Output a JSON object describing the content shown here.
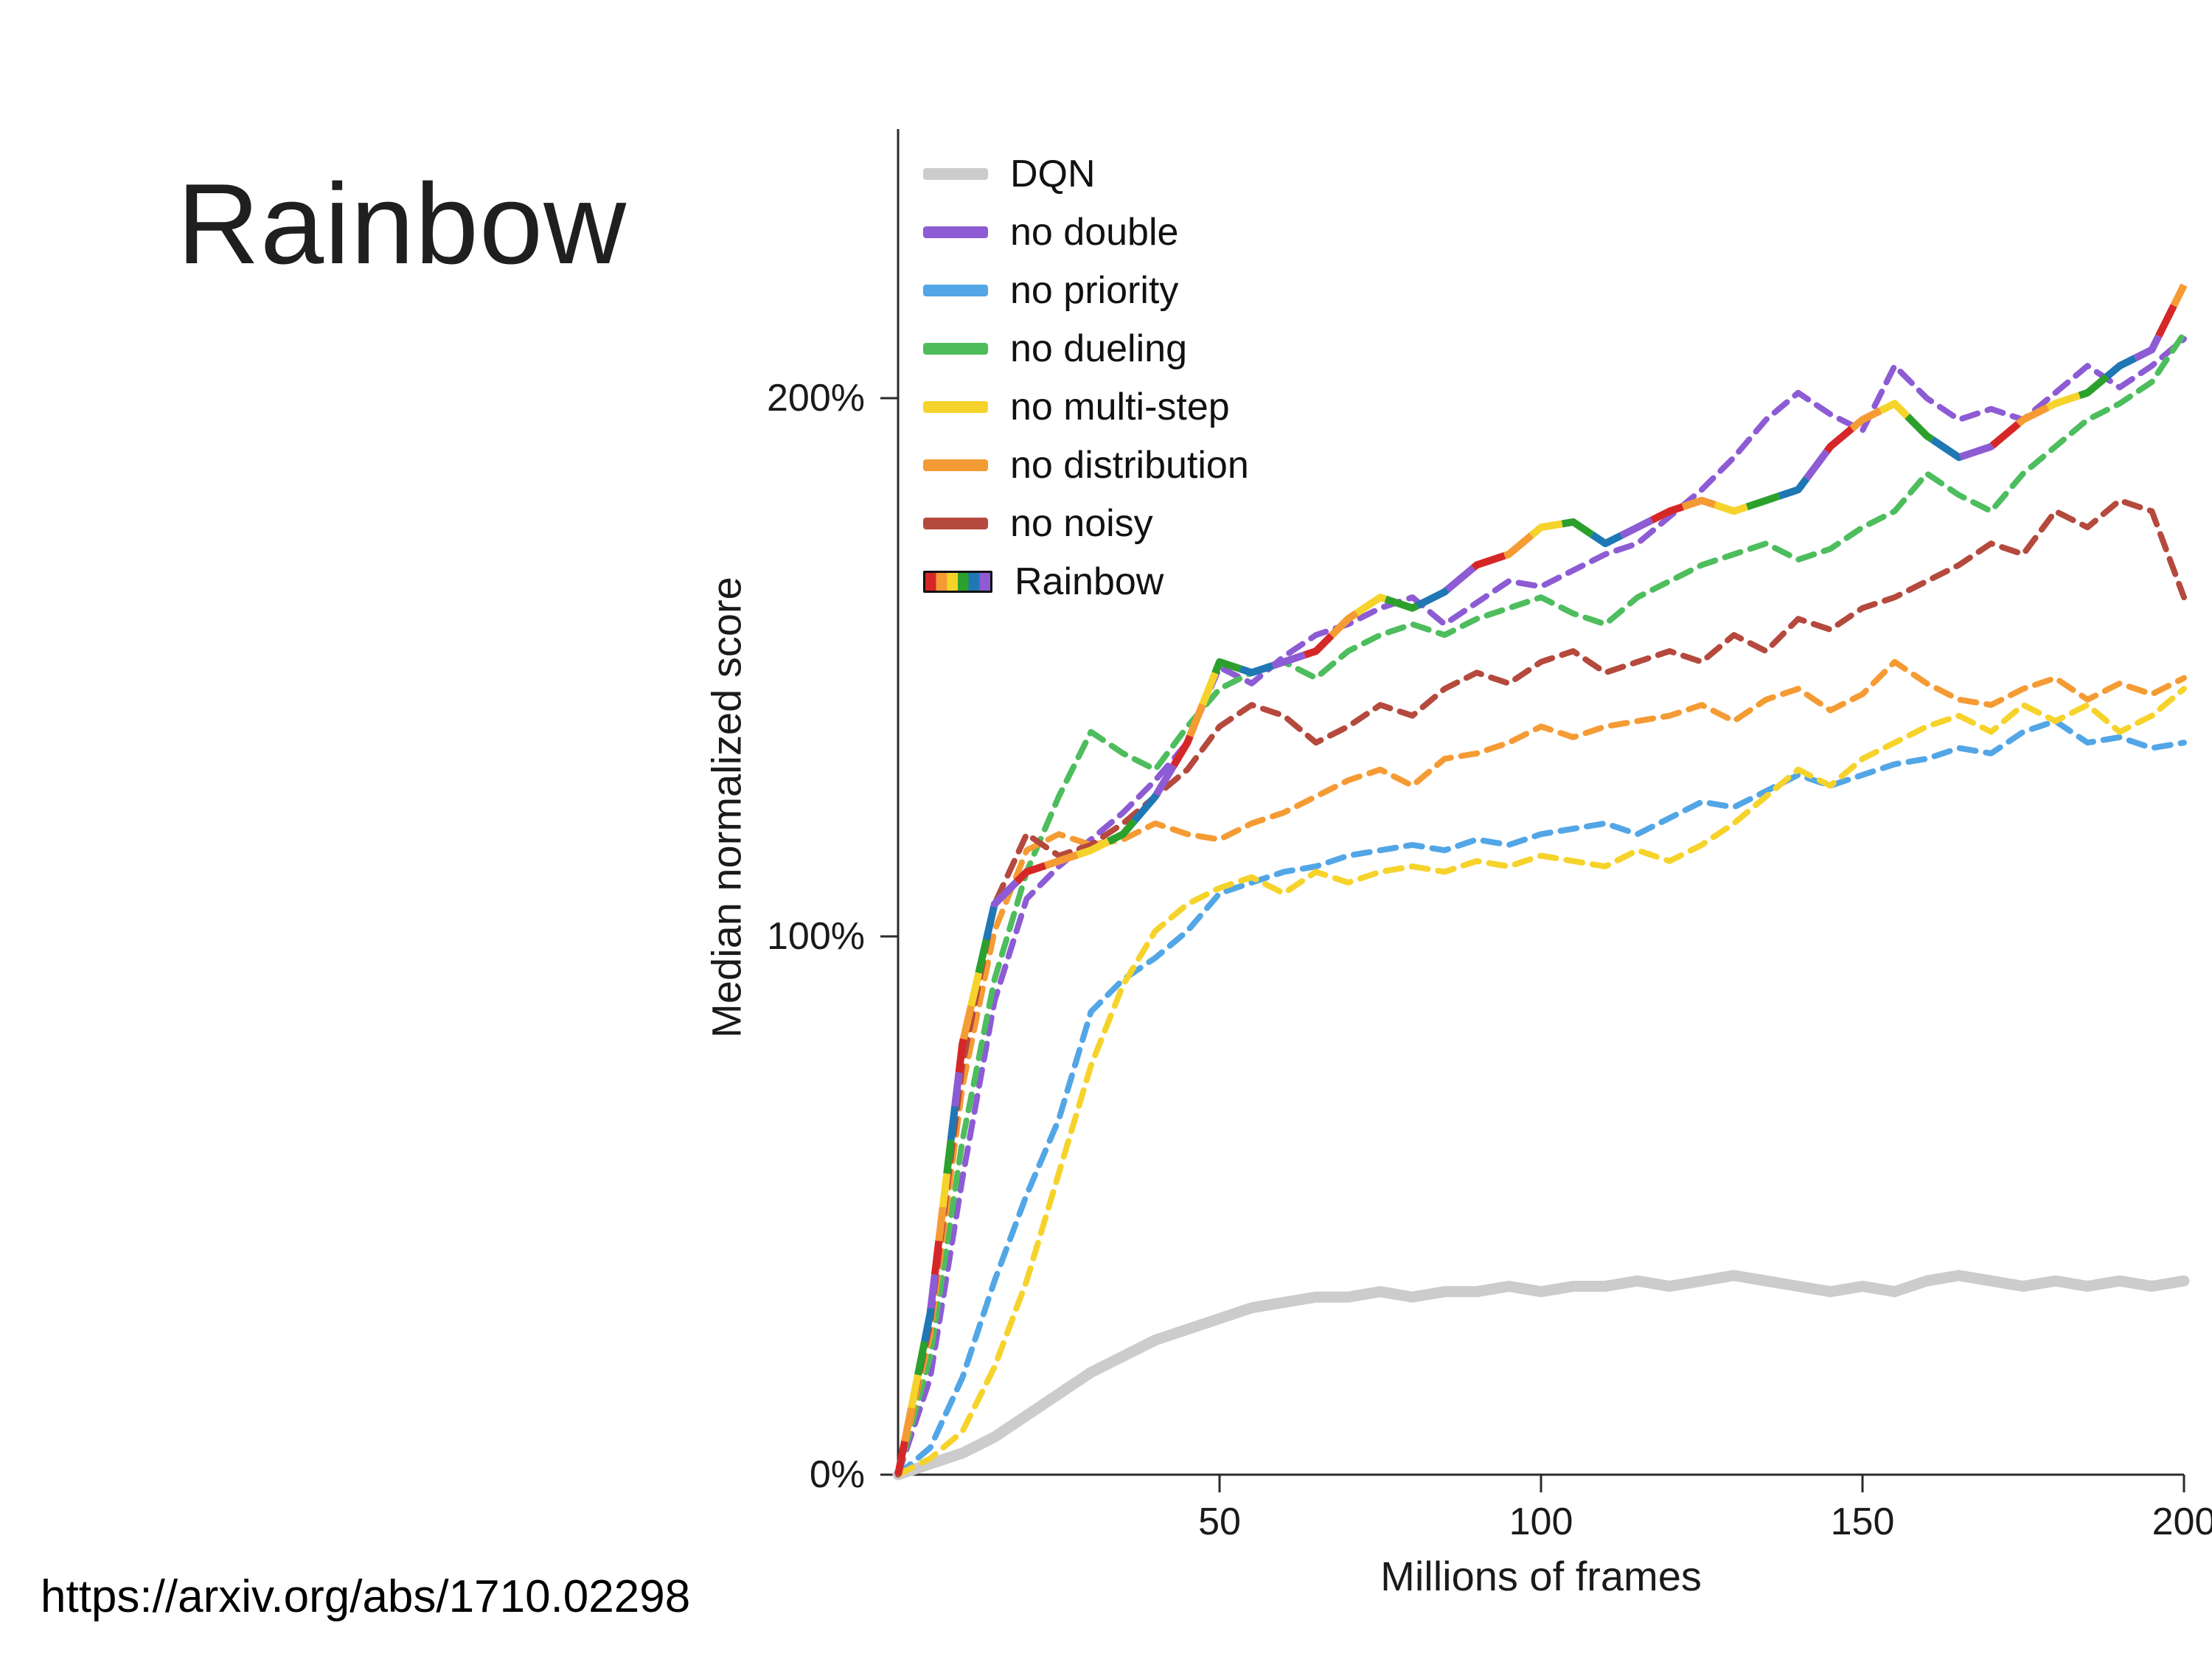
{
  "slide": {
    "title": "Rainbow",
    "source_link": "https://arxiv.org/abs/1710.02298"
  },
  "chart_data": {
    "type": "line",
    "title": "",
    "xlabel": "Millions of frames",
    "ylabel": "Median normalized score",
    "xlim": [
      0,
      200
    ],
    "ylim_percent": [
      0,
      250
    ],
    "grid": false,
    "legend_position": "top-left",
    "x_ticks": [
      50,
      100,
      150,
      200
    ],
    "y_ticks": [
      {
        "value": 0,
        "label": "0%"
      },
      {
        "value": 100,
        "label": "100%"
      },
      {
        "value": 200,
        "label": "200%"
      }
    ],
    "x": [
      0,
      5,
      10,
      15,
      20,
      25,
      30,
      35,
      40,
      45,
      50,
      55,
      60,
      65,
      70,
      75,
      80,
      85,
      90,
      95,
      100,
      105,
      110,
      115,
      120,
      125,
      130,
      135,
      140,
      145,
      150,
      155,
      160,
      165,
      170,
      175,
      180,
      185,
      190,
      195,
      200
    ],
    "series": [
      {
        "name": "DQN",
        "color": "#cccccc",
        "style": "solid-thick",
        "values": [
          0,
          2,
          4,
          7,
          11,
          15,
          19,
          22,
          25,
          27,
          29,
          31,
          32,
          33,
          33,
          34,
          33,
          34,
          34,
          35,
          34,
          35,
          35,
          36,
          35,
          36,
          37,
          36,
          35,
          34,
          35,
          34,
          36,
          37,
          36,
          35,
          36,
          35,
          36,
          35,
          36
        ]
      },
      {
        "name": "no double",
        "color": "#8d5bd4",
        "style": "dashed",
        "values": [
          0,
          18,
          55,
          88,
          107,
          113,
          118,
          123,
          129,
          136,
          150,
          147,
          152,
          156,
          158,
          161,
          163,
          158,
          162,
          166,
          165,
          168,
          171,
          173,
          178,
          183,
          189,
          196,
          201,
          197,
          194,
          206,
          200,
          196,
          198,
          196,
          201,
          206,
          202,
          206,
          211
        ]
      },
      {
        "name": "no priority",
        "color": "#52a6e6",
        "style": "dashed",
        "values": [
          0,
          5,
          18,
          36,
          52,
          66,
          86,
          92,
          96,
          101,
          108,
          110,
          112,
          113,
          115,
          116,
          117,
          116,
          118,
          117,
          119,
          120,
          121,
          119,
          122,
          125,
          124,
          127,
          130,
          128,
          130,
          132,
          133,
          135,
          134,
          138,
          140,
          136,
          137,
          135,
          136
        ]
      },
      {
        "name": "no dueling",
        "color": "#4dbd5d",
        "style": "dashed",
        "values": [
          0,
          22,
          62,
          92,
          112,
          126,
          138,
          134,
          131,
          139,
          146,
          149,
          151,
          148,
          153,
          156,
          158,
          156,
          159,
          161,
          163,
          160,
          158,
          163,
          166,
          169,
          171,
          173,
          170,
          172,
          176,
          179,
          186,
          182,
          179,
          186,
          191,
          196,
          199,
          203,
          212
        ]
      },
      {
        "name": "no multi-step",
        "color": "#f6d32b",
        "style": "dashed",
        "values": [
          0,
          3,
          8,
          20,
          36,
          56,
          76,
          91,
          101,
          106,
          109,
          111,
          108,
          112,
          110,
          112,
          113,
          112,
          114,
          113,
          115,
          114,
          113,
          116,
          114,
          117,
          121,
          126,
          131,
          128,
          133,
          136,
          139,
          141,
          138,
          143,
          140,
          143,
          138,
          141,
          146
        ]
      },
      {
        "name": "no distribution",
        "color": "#f59b34",
        "style": "dashed",
        "values": [
          0,
          26,
          72,
          101,
          116,
          119,
          117,
          118,
          121,
          119,
          118,
          121,
          123,
          126,
          129,
          131,
          128,
          133,
          134,
          136,
          139,
          137,
          139,
          140,
          141,
          143,
          140,
          144,
          146,
          142,
          145,
          151,
          147,
          144,
          143,
          146,
          148,
          144,
          147,
          145,
          148
        ]
      },
      {
        "name": "no noisy",
        "color": "#b5493d",
        "style": "dashed",
        "values": [
          0,
          28,
          76,
          106,
          119,
          115,
          117,
          121,
          126,
          131,
          139,
          143,
          141,
          136,
          139,
          143,
          141,
          146,
          149,
          147,
          151,
          153,
          149,
          151,
          153,
          151,
          156,
          153,
          159,
          157,
          161,
          163,
          166,
          169,
          173,
          171,
          179,
          176,
          181,
          179,
          163
        ]
      },
      {
        "name": "Rainbow",
        "style": "multicolor",
        "rainbow_colors": [
          "#d62728",
          "#f59b34",
          "#f6d32b",
          "#2ca02c",
          "#1f77b4",
          "#8d5bd4"
        ],
        "values": [
          0,
          30,
          80,
          106,
          112,
          114,
          116,
          119,
          126,
          136,
          151,
          149,
          151,
          153,
          159,
          163,
          161,
          164,
          169,
          171,
          176,
          177,
          173,
          176,
          179,
          181,
          179,
          181,
          183,
          191,
          196,
          199,
          193,
          189,
          191,
          196,
          199,
          201,
          206,
          209,
          221
        ]
      }
    ]
  }
}
